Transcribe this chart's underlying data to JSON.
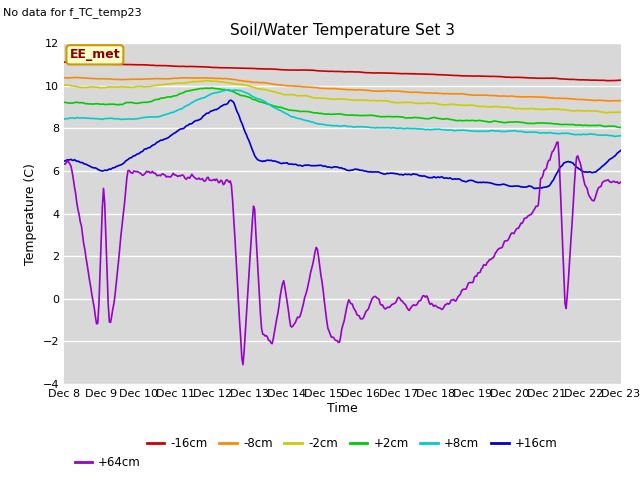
{
  "title": "Soil/Water Temperature Set 3",
  "no_data_label": "No data for f_TC_temp23",
  "legend_label": "EE_met",
  "xlabel": "Time",
  "ylabel": "Temperature (C)",
  "ylim": [
    -4,
    12
  ],
  "yticks": [
    -4,
    -2,
    0,
    2,
    4,
    6,
    8,
    10,
    12
  ],
  "background_color": "#d8d8d8",
  "series": {
    "-16cm": {
      "color": "#cc0000",
      "linewidth": 1.2
    },
    "-8cm": {
      "color": "#ff8800",
      "linewidth": 1.2
    },
    "-2cm": {
      "color": "#cccc00",
      "linewidth": 1.2
    },
    "+2cm": {
      "color": "#00cc00",
      "linewidth": 1.2
    },
    "+8cm": {
      "color": "#00cccc",
      "linewidth": 1.2
    },
    "+16cm": {
      "color": "#0000cc",
      "linewidth": 1.2
    },
    "+64cm": {
      "color": "#9900cc",
      "linewidth": 1.2
    }
  },
  "x_ticks": [
    "Dec 8",
    "Dec 9",
    "Dec 10",
    "Dec 11",
    "Dec 12",
    "Dec 13",
    "Dec 14",
    "Dec 15",
    "Dec 16",
    "Dec 17",
    "Dec 18",
    "Dec 19",
    "Dec 20",
    "Dec 21",
    "Dec 22",
    "Dec 23"
  ],
  "n_points": 480
}
